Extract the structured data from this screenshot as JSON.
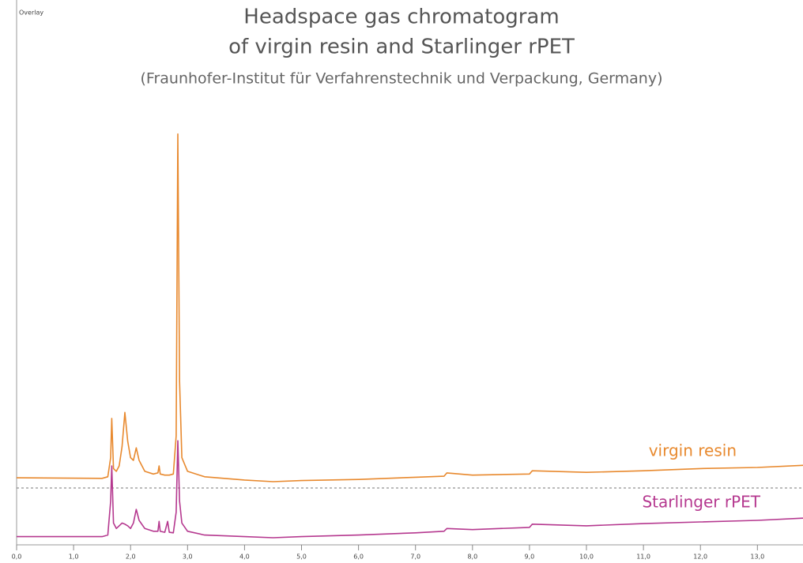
{
  "chart_data": {
    "type": "line",
    "panel_label": "Overlay",
    "title": [
      "Headspace gas chromatogram",
      "of virgin resin and Starlinger rPET"
    ],
    "subtitle": "(Fraunhofer-Institut für Verfahrenstechnik und Verpackung, Germany)",
    "x": [
      0,
      1.5,
      1.6,
      1.65,
      1.67,
      1.7,
      1.75,
      1.8,
      1.85,
      1.9,
      1.95,
      2.0,
      2.05,
      2.1,
      2.15,
      2.25,
      2.4,
      2.48,
      2.5,
      2.52,
      2.6,
      2.65,
      2.68,
      2.75,
      2.8,
      2.83,
      2.86,
      2.9,
      3.0,
      3.3,
      4.0,
      4.5,
      5.0,
      6.0,
      7.0,
      7.5,
      7.55,
      8.0,
      9.0,
      9.05,
      10.0,
      11.0,
      12.0,
      13.0,
      13.8
    ],
    "series": [
      {
        "name": "virgin resin",
        "color": "#e8892e",
        "values": [
          12.3,
          12.2,
          12.5,
          16,
          23.2,
          14,
          13.5,
          14.5,
          18,
          24.3,
          19,
          16,
          15.5,
          17.8,
          15.5,
          13.5,
          13,
          13.2,
          14.5,
          13,
          12.8,
          12.8,
          12.8,
          13,
          20,
          75.4,
          30,
          16,
          13.5,
          12.5,
          11.9,
          11.6,
          11.8,
          12.0,
          12.4,
          12.6,
          13.2,
          12.8,
          13.0,
          13.6,
          13.3,
          13.6,
          14.0,
          14.2,
          14.6
        ]
      },
      {
        "name": "Starlinger rPET",
        "color": "#b5388f",
        "values": [
          1.5,
          1.5,
          1.8,
          8,
          14.5,
          4,
          3,
          3.5,
          4,
          3.8,
          3.5,
          3,
          4,
          6.5,
          4.5,
          3,
          2.5,
          2.5,
          4.3,
          2.5,
          2.3,
          4.3,
          2.3,
          2.2,
          6,
          19.1,
          8,
          4,
          2.5,
          1.8,
          1.5,
          1.3,
          1.5,
          1.8,
          2.2,
          2.5,
          3,
          2.8,
          3.2,
          3.8,
          3.5,
          3.9,
          4.2,
          4.5,
          4.9
        ]
      }
    ],
    "xlim": [
      0,
      13.8
    ],
    "ylim": [
      0,
      100
    ],
    "xticks": [
      {
        "value": 0,
        "label": "0,0"
      },
      {
        "value": 1,
        "label": "1,0"
      },
      {
        "value": 2,
        "label": "2,0"
      },
      {
        "value": 3,
        "label": "3,0"
      },
      {
        "value": 4,
        "label": "4,0"
      },
      {
        "value": 5,
        "label": "5,0"
      },
      {
        "value": 6,
        "label": "6,0"
      },
      {
        "value": 7,
        "label": "7,0"
      },
      {
        "value": 8,
        "label": "8,0"
      },
      {
        "value": 9,
        "label": "9,0"
      },
      {
        "value": 10,
        "label": "10,0"
      },
      {
        "value": 11,
        "label": "11,0"
      },
      {
        "value": 12,
        "label": "12,0"
      },
      {
        "value": 13,
        "label": "13,0"
      }
    ]
  }
}
